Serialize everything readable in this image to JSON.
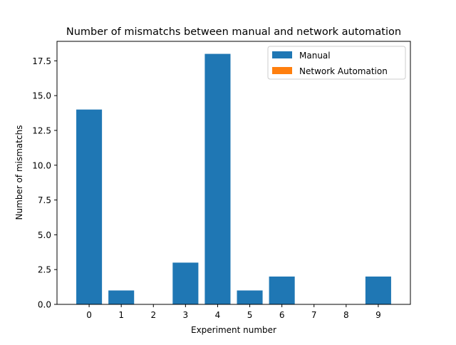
{
  "chart_data": {
    "type": "bar",
    "title": "Number of mismatchs between manual and network automation",
    "xlabel": "Experiment number",
    "ylabel": "Number of mismatchs",
    "categories": [
      "0",
      "1",
      "2",
      "3",
      "4",
      "5",
      "6",
      "7",
      "8",
      "9"
    ],
    "series": [
      {
        "name": "Manual",
        "color": "#1f77b4",
        "values": [
          14,
          1,
          0,
          3,
          18,
          1,
          2,
          0,
          0,
          2
        ]
      },
      {
        "name": "Network Automation",
        "color": "#ff7f0e",
        "values": [
          0,
          0,
          0,
          0,
          0,
          0,
          0,
          0,
          0,
          0
        ]
      }
    ],
    "ylim": [
      0,
      18.9
    ],
    "yticks": [
      0.0,
      2.5,
      5.0,
      7.5,
      10.0,
      12.5,
      15.0,
      17.5
    ],
    "ytick_labels": [
      "0.0",
      "2.5",
      "5.0",
      "7.5",
      "10.0",
      "12.5",
      "15.0",
      "17.5"
    ],
    "grid": false,
    "legend_position": "top-right"
  }
}
